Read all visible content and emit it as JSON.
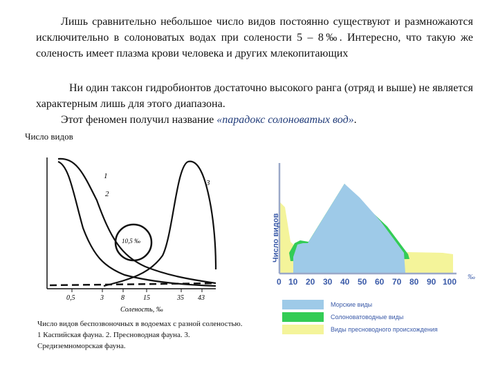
{
  "text": {
    "p1": "Лишь сравнительно небольшое число видов постоянно существуют и размножаются исключительно в солоноватых водах при солености  5 – 8‰. Интересно, что такую же  соленость имеет плазма крови человека  и других млекопитающих",
    "p2": "Ни один таксон гидробионтов достаточно высокого ранга (отряд и выше) не является характерным лишь для этого диапазона.",
    "p3_prefix": "Этот феномен получил название ",
    "p3_quote": "«парадокс солоноватых вод»",
    "p3_suffix": "."
  },
  "left_chart": {
    "ylabel": "Число видов",
    "xlabel": "Соленость, ‰",
    "ticks": [
      "0,5",
      "3",
      "8",
      "15",
      "35",
      "43"
    ],
    "curve_labels": [
      "1",
      "2",
      "3"
    ],
    "circle_label": "10,5 ‰",
    "caption": "Число видов беспозвоночных в водоемах с разной соленостью. 1 Каспийская фауна. 2. Пресноводная фауна. 3. Средиземноморская фауна.",
    "colors": {
      "line": "#111111"
    }
  },
  "right_chart": {
    "ylabel": "Число видов",
    "x_unit": "‰",
    "ticks": [
      "0",
      "10",
      "20",
      "30",
      "40",
      "50",
      "60",
      "70",
      "80",
      "90",
      "100"
    ],
    "legend": [
      "Морские виды",
      "Солоноватоводные виды",
      "Виды пресноводного происхождения"
    ],
    "colors": {
      "marine": "#9ecae8",
      "brackish": "#33cc55",
      "fresh": "#f4f49a",
      "axis": "#9aa8c8",
      "label": "#3a5aa8"
    }
  }
}
